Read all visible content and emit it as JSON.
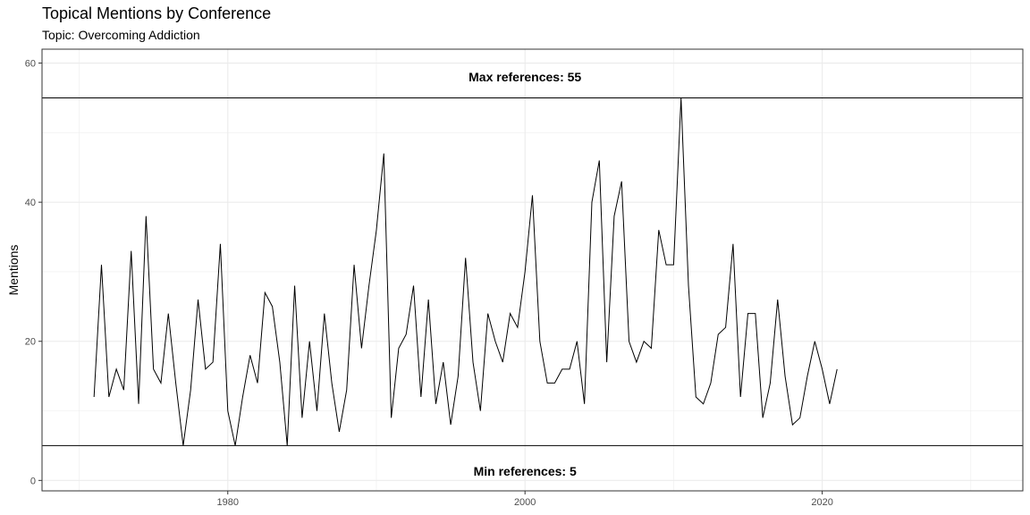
{
  "chart_data": {
    "type": "line",
    "title": "Topical Mentions by Conference",
    "subtitle": "Topic: Overcoming Addiction",
    "xlabel": "",
    "ylabel": "Mentions",
    "xlim": [
      1967.5,
      2033.5
    ],
    "ylim": [
      -1.5,
      62
    ],
    "x_ticks": [
      1980,
      2000,
      2020
    ],
    "y_ticks": [
      0,
      20,
      40,
      60
    ],
    "grid": true,
    "legend": "none",
    "series": [
      {
        "x": [
          1971,
          1971.5,
          1972,
          1972.5,
          1973,
          1973.5,
          1974,
          1974.5,
          1975,
          1975.5,
          1976,
          1976.5,
          1977,
          1977.5,
          1978,
          1978.5,
          1979,
          1979.5,
          1980,
          1980.5,
          1981,
          1981.5,
          1982,
          1982.5,
          1983,
          1983.5,
          1984,
          1984.5,
          1985,
          1985.5,
          1986,
          1986.5,
          1987,
          1987.5,
          1988,
          1988.5,
          1989,
          1989.5,
          1990,
          1990.5,
          1991,
          1991.5,
          1992,
          1992.5,
          1993,
          1993.5,
          1994,
          1994.5,
          1995,
          1995.5,
          1996,
          1996.5,
          1997,
          1997.5,
          1998,
          1998.5,
          1999,
          1999.5,
          2000,
          2000.5,
          2001,
          2001.5,
          2002,
          2002.5,
          2003,
          2003.5,
          2004,
          2004.5,
          2005,
          2005.5,
          2006,
          2006.5,
          2007,
          2007.5,
          2008,
          2008.5,
          2009,
          2009.5,
          2010,
          2010.5,
          2011,
          2011.5,
          2012,
          2012.5,
          2013,
          2013.5,
          2014,
          2014.5,
          2015,
          2015.5,
          2016,
          2016.5,
          2017,
          2017.5,
          2018,
          2018.5,
          2019,
          2019.5,
          2020,
          2020.5,
          2021
        ],
        "values": [
          12,
          31,
          12,
          16,
          13,
          33,
          11,
          38,
          16,
          14,
          24,
          14,
          5,
          13,
          26,
          16,
          17,
          34,
          10,
          5,
          12,
          18,
          14,
          27,
          25,
          17,
          5,
          28,
          9,
          20,
          10,
          24,
          14,
          7,
          13,
          31,
          19,
          28,
          36,
          47,
          9,
          19,
          21,
          28,
          12,
          26,
          11,
          17,
          8,
          15,
          32,
          17,
          10,
          24,
          20,
          17,
          24,
          22,
          30,
          41,
          20,
          14,
          14,
          16,
          16,
          20,
          11,
          40,
          46,
          17,
          38,
          43,
          20,
          17,
          20,
          19,
          36,
          31,
          31,
          55,
          28,
          12,
          11,
          14,
          21,
          22,
          34,
          12,
          24,
          24,
          9,
          14,
          26,
          15,
          8,
          9,
          15,
          20,
          16,
          11,
          16
        ]
      }
    ],
    "reference_lines": [
      {
        "y": 55,
        "label": "Max references: 55",
        "label_x": 2000,
        "label_y": 58
      },
      {
        "y": 5,
        "label": "Min references: 5",
        "label_x": 2000,
        "label_y": 1.3
      }
    ],
    "colors": {
      "line": "#000000",
      "grid": "#ebebeb",
      "panel_border": "#333333",
      "tick_text": "#4d4d4d"
    }
  }
}
